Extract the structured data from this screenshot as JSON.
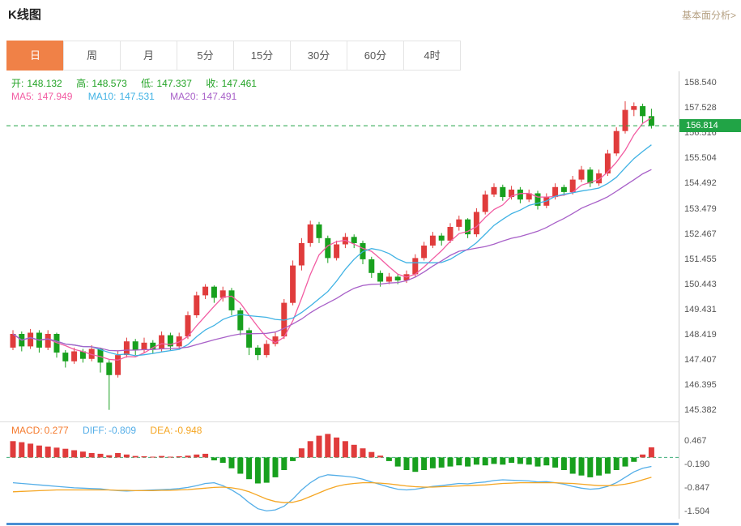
{
  "page": {
    "title": "K线图",
    "header_link": "基本面分析>"
  },
  "tabs": {
    "active_label": "日",
    "items": [
      {
        "label": "日"
      },
      {
        "label": "周"
      },
      {
        "label": "月"
      },
      {
        "label": "5分"
      },
      {
        "label": "15分"
      },
      {
        "label": "30分"
      },
      {
        "label": "60分"
      },
      {
        "label": "4时"
      }
    ]
  },
  "indicators": {
    "ohlc": [
      {
        "label": "开:",
        "value": "148.132"
      },
      {
        "label": "高:",
        "value": "148.573"
      },
      {
        "label": "低:",
        "value": "147.337"
      },
      {
        "label": "收:",
        "value": "147.461"
      }
    ],
    "ma": [
      {
        "label": "MA5:",
        "value": "147.949"
      },
      {
        "label": "MA10:",
        "value": "147.531"
      },
      {
        "label": "MA20:",
        "value": "147.491"
      }
    ],
    "macd": [
      {
        "label": "MACD:",
        "value": "0.277"
      },
      {
        "label": "DIFF:",
        "value": "-0.809"
      },
      {
        "label": "DEA:",
        "value": "-0.948"
      }
    ]
  },
  "colors": {
    "up": "#e03c3c",
    "down": "#18a01e",
    "ma5": "#f25ca2",
    "ma10": "#3fb2e4",
    "ma20": "#a860c8",
    "diff": "#54aee8",
    "dea": "#f5a623",
    "macd_label": "#f57b2f",
    "macd_zero": "#3fae7a",
    "price_line": "#21a446",
    "tab_active_bg": "#f08147",
    "axis_line": "#cccccc",
    "scrollbar": "#4a8fd3",
    "ohlc_text": "#23a326",
    "link": "#b5a082"
  },
  "chart_data": {
    "type": "candlestick",
    "title": "K线图",
    "timeframe": "日",
    "legend": [
      "MA5",
      "MA10",
      "MA20",
      "MACD",
      "DIFF",
      "DEA"
    ],
    "current_price": 156.814,
    "current_price_label": "156.814",
    "price_range": [
      145.0,
      159.0
    ],
    "price_axis_labels": [
      "158.540",
      "157.528",
      "156.516",
      "155.504",
      "154.492",
      "153.479",
      "152.467",
      "151.455",
      "150.443",
      "149.431",
      "148.419",
      "147.407",
      "146.395",
      "145.382"
    ],
    "ma_windows": [
      5,
      10,
      20
    ],
    "candles_ohlc": [
      [
        147.9,
        148.6,
        147.8,
        148.45
      ],
      [
        148.45,
        148.55,
        147.75,
        147.95
      ],
      [
        147.95,
        148.65,
        147.85,
        148.5
      ],
      [
        148.5,
        148.6,
        147.7,
        147.9
      ],
      [
        147.9,
        148.6,
        147.8,
        148.45
      ],
      [
        148.45,
        148.5,
        147.5,
        147.7
      ],
      [
        147.7,
        147.8,
        147.1,
        147.35
      ],
      [
        147.35,
        147.9,
        147.25,
        147.75
      ],
      [
        147.75,
        147.85,
        147.3,
        147.45
      ],
      [
        147.45,
        148.0,
        147.35,
        147.85
      ],
      [
        147.85,
        147.9,
        146.9,
        147.3
      ],
      [
        147.3,
        147.4,
        145.4,
        146.8
      ],
      [
        146.8,
        147.75,
        146.7,
        147.6
      ],
      [
        147.6,
        148.3,
        147.5,
        148.15
      ],
      [
        148.15,
        148.25,
        147.6,
        147.8
      ],
      [
        147.8,
        148.3,
        147.7,
        148.1
      ],
      [
        148.1,
        148.2,
        147.65,
        147.85
      ],
      [
        147.85,
        148.55,
        147.75,
        148.4
      ],
      [
        148.4,
        148.5,
        147.8,
        147.95
      ],
      [
        147.95,
        148.5,
        147.85,
        148.35
      ],
      [
        148.35,
        149.35,
        148.25,
        149.2
      ],
      [
        149.2,
        150.15,
        149.1,
        150.0
      ],
      [
        150.0,
        150.45,
        149.85,
        150.35
      ],
      [
        150.35,
        150.4,
        149.7,
        149.9
      ],
      [
        149.9,
        150.35,
        149.75,
        150.2
      ],
      [
        150.2,
        150.3,
        149.2,
        149.4
      ],
      [
        149.4,
        149.5,
        148.4,
        148.6
      ],
      [
        148.6,
        148.7,
        147.6,
        147.9
      ],
      [
        147.9,
        148.0,
        147.4,
        147.6
      ],
      [
        147.6,
        148.2,
        147.5,
        148.05
      ],
      [
        148.05,
        148.5,
        147.95,
        148.35
      ],
      [
        148.35,
        149.85,
        148.25,
        149.7
      ],
      [
        149.7,
        151.4,
        149.6,
        151.2
      ],
      [
        151.2,
        152.3,
        151.0,
        152.1
      ],
      [
        152.1,
        153.0,
        151.95,
        152.85
      ],
      [
        152.85,
        152.95,
        152.1,
        152.3
      ],
      [
        152.3,
        152.4,
        151.3,
        151.5
      ],
      [
        151.5,
        152.2,
        151.4,
        152.05
      ],
      [
        152.05,
        152.5,
        151.9,
        152.35
      ],
      [
        152.35,
        152.45,
        151.9,
        152.1
      ],
      [
        152.1,
        152.2,
        151.25,
        151.45
      ],
      [
        151.45,
        151.55,
        150.7,
        150.9
      ],
      [
        150.9,
        151.0,
        150.35,
        150.55
      ],
      [
        150.55,
        150.9,
        150.45,
        150.75
      ],
      [
        150.75,
        150.85,
        150.45,
        150.6
      ],
      [
        150.6,
        151.0,
        150.5,
        150.85
      ],
      [
        150.85,
        151.65,
        150.75,
        151.5
      ],
      [
        151.5,
        152.15,
        151.4,
        152.0
      ],
      [
        152.0,
        152.55,
        151.9,
        152.4
      ],
      [
        152.4,
        152.5,
        152.0,
        152.2
      ],
      [
        152.2,
        152.9,
        152.1,
        152.75
      ],
      [
        152.75,
        153.2,
        152.6,
        153.05
      ],
      [
        153.05,
        153.1,
        152.3,
        152.45
      ],
      [
        152.45,
        153.5,
        152.35,
        153.35
      ],
      [
        153.35,
        154.2,
        153.25,
        154.05
      ],
      [
        154.05,
        154.5,
        153.95,
        154.35
      ],
      [
        154.35,
        154.45,
        153.8,
        153.95
      ],
      [
        153.95,
        154.4,
        153.85,
        154.25
      ],
      [
        154.25,
        154.35,
        153.7,
        153.85
      ],
      [
        153.85,
        154.25,
        153.75,
        154.1
      ],
      [
        154.1,
        154.2,
        153.45,
        153.6
      ],
      [
        153.6,
        154.1,
        153.5,
        153.95
      ],
      [
        153.95,
        154.5,
        153.85,
        154.35
      ],
      [
        154.35,
        154.45,
        154.0,
        154.15
      ],
      [
        154.15,
        154.8,
        154.05,
        154.65
      ],
      [
        154.65,
        155.2,
        154.55,
        155.05
      ],
      [
        155.05,
        155.15,
        154.35,
        154.5
      ],
      [
        154.5,
        155.05,
        154.4,
        154.9
      ],
      [
        154.9,
        155.85,
        154.8,
        155.7
      ],
      [
        155.7,
        156.75,
        155.6,
        156.6
      ],
      [
        156.6,
        157.8,
        156.5,
        157.45
      ],
      [
        157.45,
        157.75,
        157.2,
        157.6
      ],
      [
        157.6,
        157.7,
        156.9,
        157.2
      ],
      [
        157.2,
        157.5,
        156.7,
        156.814
      ]
    ],
    "macd": {
      "axis_labels": [
        "0.467",
        "-0.190",
        "-0.847",
        "-1.504"
      ],
      "range": [
        -1.65,
        0.95
      ],
      "hist": [
        0.45,
        0.42,
        0.38,
        0.33,
        0.3,
        0.27,
        0.24,
        0.2,
        0.16,
        0.12,
        0.1,
        0.06,
        0.12,
        0.08,
        0.04,
        0.03,
        0.02,
        0.04,
        0.02,
        0.03,
        0.05,
        0.08,
        0.1,
        -0.08,
        -0.15,
        -0.3,
        -0.45,
        -0.6,
        -0.72,
        -0.7,
        -0.55,
        -0.35,
        -0.1,
        0.25,
        0.45,
        0.6,
        0.65,
        0.55,
        0.45,
        0.35,
        0.25,
        0.15,
        0.05,
        -0.1,
        -0.25,
        -0.35,
        -0.4,
        -0.35,
        -0.3,
        -0.28,
        -0.25,
        -0.22,
        -0.25,
        -0.2,
        -0.22,
        -0.18,
        -0.2,
        -0.15,
        -0.18,
        -0.2,
        -0.25,
        -0.22,
        -0.28,
        -0.35,
        -0.45,
        -0.5,
        -0.55,
        -0.5,
        -0.45,
        -0.35,
        -0.25,
        -0.12,
        0.08,
        0.28
      ],
      "diff": [
        -0.7,
        -0.72,
        -0.74,
        -0.76,
        -0.78,
        -0.8,
        -0.82,
        -0.84,
        -0.85,
        -0.86,
        -0.87,
        -0.9,
        -0.92,
        -0.93,
        -0.92,
        -0.91,
        -0.9,
        -0.89,
        -0.88,
        -0.86,
        -0.83,
        -0.78,
        -0.72,
        -0.7,
        -0.78,
        -0.9,
        -1.05,
        -1.25,
        -1.42,
        -1.48,
        -1.45,
        -1.35,
        -1.15,
        -0.9,
        -0.7,
        -0.55,
        -0.48,
        -0.5,
        -0.52,
        -0.55,
        -0.6,
        -0.68,
        -0.75,
        -0.82,
        -0.88,
        -0.9,
        -0.88,
        -0.84,
        -0.8,
        -0.78,
        -0.75,
        -0.72,
        -0.73,
        -0.7,
        -0.68,
        -0.64,
        -0.62,
        -0.63,
        -0.64,
        -0.65,
        -0.68,
        -0.67,
        -0.7,
        -0.74,
        -0.8,
        -0.85,
        -0.88,
        -0.86,
        -0.8,
        -0.7,
        -0.55,
        -0.4,
        -0.3,
        -0.25
      ],
      "dea": [
        -0.95,
        -0.94,
        -0.93,
        -0.92,
        -0.91,
        -0.9,
        -0.9,
        -0.9,
        -0.9,
        -0.9,
        -0.9,
        -0.9,
        -0.91,
        -0.91,
        -0.92,
        -0.92,
        -0.92,
        -0.91,
        -0.91,
        -0.9,
        -0.89,
        -0.87,
        -0.85,
        -0.83,
        -0.82,
        -0.84,
        -0.88,
        -0.95,
        -1.05,
        -1.15,
        -1.22,
        -1.25,
        -1.24,
        -1.18,
        -1.08,
        -0.98,
        -0.88,
        -0.8,
        -0.75,
        -0.72,
        -0.7,
        -0.7,
        -0.71,
        -0.73,
        -0.76,
        -0.79,
        -0.81,
        -0.82,
        -0.82,
        -0.81,
        -0.8,
        -0.79,
        -0.78,
        -0.77,
        -0.76,
        -0.74,
        -0.72,
        -0.71,
        -0.7,
        -0.7,
        -0.7,
        -0.7,
        -0.7,
        -0.71,
        -0.72,
        -0.74,
        -0.76,
        -0.78,
        -0.78,
        -0.77,
        -0.74,
        -0.69,
        -0.62,
        -0.55
      ]
    }
  }
}
